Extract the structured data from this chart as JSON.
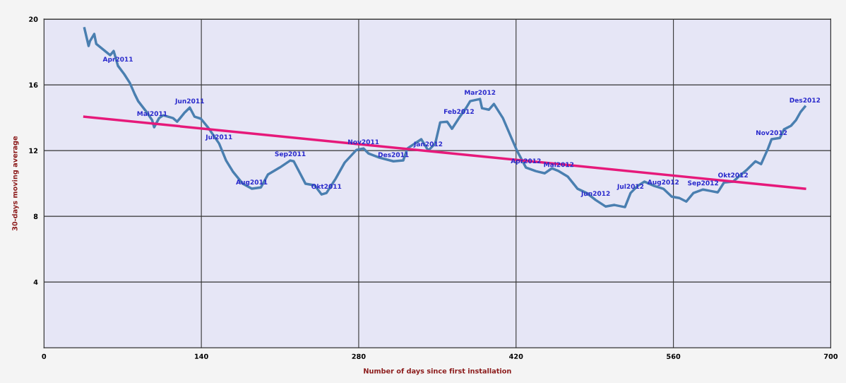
{
  "chart_data": {
    "type": "line",
    "xlabel": "Number of days since first installation",
    "ylabel": "30-days moving average",
    "xlim": [
      0,
      700
    ],
    "ylim": [
      0,
      20
    ],
    "xticks": [
      0,
      140,
      280,
      420,
      560,
      700
    ],
    "yticks": [
      4,
      8,
      12,
      16,
      20
    ],
    "grid": true,
    "marker": "none",
    "series": [
      {
        "color": "#4a7fb0",
        "x": [
          36,
          39.7,
          40.9,
          44.7,
          46.5,
          52.7,
          58.9,
          62,
          65.8,
          71.4,
          76.3,
          80.7,
          83.8,
          90.6,
          96.2,
          98,
          102.4,
          106.1,
          114.8,
          118.5,
          124.7,
          129.7,
          134,
          139.6,
          145.8,
          155.8,
          162,
          168.2,
          176.9,
          184.9,
          193,
          199.2,
          209.8,
          219.1,
          222.2,
          232.7,
          240.8,
          247,
          251.3,
          259.4,
          267.5,
          278,
          284.2,
          288.6,
          298.5,
          310.9,
          319.6,
          323.3,
          335.7,
          341.9,
          348.1,
          352.5,
          358.7,
          363,
          369.2,
          375.4,
          379.2,
          387.9,
          389.7,
          395.9,
          400.3,
          408.3,
          416.4,
          420.8,
          428.8,
          437.5,
          445.6,
          451.8,
          458,
          466.1,
          474.7,
          482.8,
          490.9,
          499.6,
          507.6,
          516.9,
          521.9,
          528.1,
          534.3,
          543,
          551,
          558.5,
          565.3,
          571.5,
          577.8,
          586.4,
          592.6,
          599.5,
          605,
          613.1,
          619.3,
          625.5,
          633,
          638,
          644.2,
          647.3,
          654.7,
          658.4,
          664.6,
          669,
          673.3,
          677
        ],
        "values": [
          19.44,
          18.37,
          18.67,
          19.1,
          18.49,
          18.15,
          17.81,
          18.06,
          17.16,
          16.65,
          16.13,
          15.44,
          15.01,
          14.41,
          13.85,
          13.42,
          13.98,
          14.15,
          13.98,
          13.76,
          14.28,
          14.62,
          14.06,
          13.94,
          13.42,
          12.43,
          11.4,
          10.71,
          9.98,
          9.68,
          9.76,
          10.54,
          10.97,
          11.4,
          11.35,
          9.98,
          9.89,
          9.33,
          9.42,
          10.28,
          11.27,
          12.04,
          12.13,
          11.83,
          11.57,
          11.35,
          11.4,
          12.13,
          12.69,
          12.0,
          12.43,
          13.72,
          13.76,
          13.33,
          13.98,
          14.58,
          15.01,
          15.14,
          14.58,
          14.49,
          14.84,
          13.98,
          12.69,
          12.0,
          10.97,
          10.75,
          10.62,
          10.92,
          10.75,
          10.41,
          9.68,
          9.42,
          8.99,
          8.6,
          8.69,
          8.56,
          9.42,
          9.85,
          10.11,
          9.85,
          9.68,
          9.2,
          9.11,
          8.9,
          9.42,
          9.63,
          9.55,
          9.46,
          10.06,
          10.11,
          10.49,
          10.84,
          11.35,
          11.18,
          12.13,
          12.69,
          12.77,
          13.29,
          13.51,
          13.85,
          14.37,
          14.67
        ]
      },
      {
        "color": "#e6197a",
        "x": [
          36,
          677
        ],
        "values": [
          14.06,
          9.68
        ]
      }
    ],
    "annotations": [
      {
        "text": "Apr2011",
        "x": 65.8,
        "y": 17.16
      },
      {
        "text": "Mai2011",
        "x": 96.2,
        "y": 13.85
      },
      {
        "text": "Jun2011",
        "x": 129.7,
        "y": 14.62
      },
      {
        "text": "Jul2011",
        "x": 155.8,
        "y": 12.43
      },
      {
        "text": "Aug2011",
        "x": 184.9,
        "y": 9.68
      },
      {
        "text": "Sep2011",
        "x": 219.1,
        "y": 11.4
      },
      {
        "text": "Okt2011",
        "x": 251.3,
        "y": 9.42
      },
      {
        "text": "Nov2011",
        "x": 284.2,
        "y": 12.13
      },
      {
        "text": "Des2011",
        "x": 310.9,
        "y": 11.35
      },
      {
        "text": "Jan2012",
        "x": 341.9,
        "y": 12.0
      },
      {
        "text": "Feb2012",
        "x": 369.2,
        "y": 13.98
      },
      {
        "text": "Mar2012",
        "x": 387.9,
        "y": 15.14
      },
      {
        "text": "Apr2012",
        "x": 428.8,
        "y": 10.97
      },
      {
        "text": "Mai2012",
        "x": 458,
        "y": 10.75
      },
      {
        "text": "Jun2012",
        "x": 490.9,
        "y": 8.99
      },
      {
        "text": "Jul2012",
        "x": 521.9,
        "y": 9.42
      },
      {
        "text": "Aug2012",
        "x": 551,
        "y": 9.68
      },
      {
        "text": "Sep2012",
        "x": 586.4,
        "y": 9.63
      },
      {
        "text": "Okt2012",
        "x": 613.1,
        "y": 10.11
      },
      {
        "text": "Nov2012",
        "x": 647.3,
        "y": 12.69
      },
      {
        "text": "Des2012",
        "x": 677,
        "y": 14.67
      }
    ]
  }
}
